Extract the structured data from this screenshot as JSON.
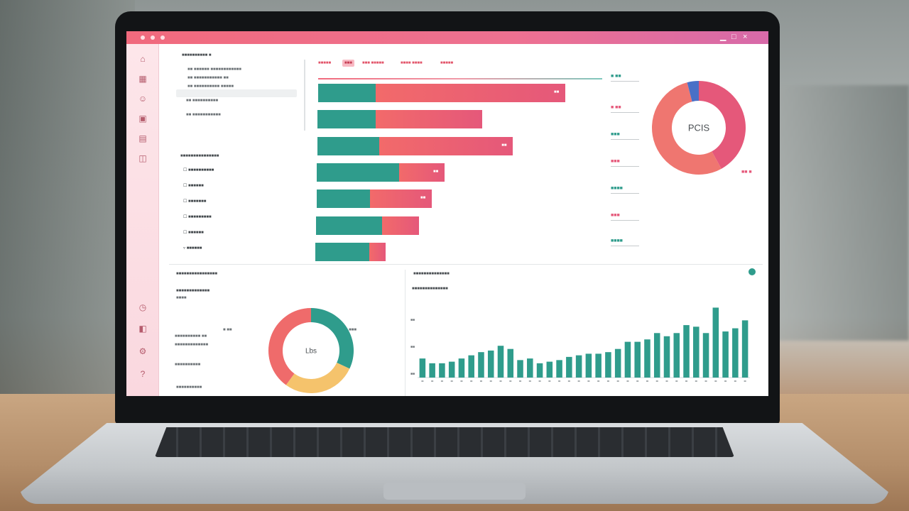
{
  "colors": {
    "teal": "#2f9c8c",
    "salmon": "#f26a6a",
    "coral": "#ef7670",
    "rose": "#e5587a",
    "pink": "#f6c8d0",
    "gold": "#f5c36c",
    "blue": "#4a70c7"
  },
  "titlebar": {
    "icons": [
      "home-dot",
      "user-dot",
      "settings-dot"
    ],
    "controls": [
      "minimize-icon",
      "maximize-icon",
      "close-icon"
    ]
  },
  "sidebar": {
    "icons": [
      "home-icon",
      "grid-icon",
      "user-icon",
      "lock-icon",
      "folder-icon",
      "layers-icon",
      "chart-icon",
      "message-icon",
      "settings-icon",
      "help-icon"
    ]
  },
  "tree": {
    "heading": "■■■■■■■■■■ ■",
    "items": [
      "■■ ■■■■■■ ■■■■■■■■■■■■",
      "■■ ■■■■■■■■■■■ ■■",
      "■■ ■■■■■■■■■■ ■■■■■",
      "■■ ■■■■■■■■■■",
      "■■ ■■■■■■■■■■■"
    ]
  },
  "filters": {
    "heading": "■■■■■■■■■■■■■■■",
    "items": [
      "■■■■■■■■■■",
      "■■■■■■",
      "■■■■■■■",
      "■■■■■■■■■",
      "■■■■■■",
      "■■■■■■"
    ]
  },
  "tabs": [
    "■■■■■",
    "■■■",
    "■■■ ■■■■■",
    "■■■■ ■■■■",
    "■■■■■"
  ],
  "chart_data": [
    {
      "type": "bar",
      "orientation": "horizontal",
      "series": [
        {
          "name": "",
          "values": [
            28,
            28,
            30,
            40,
            26,
            32,
            26
          ]
        },
        {
          "name": "",
          "values": [
            92,
            52,
            65,
            22,
            30,
            18,
            8
          ]
        }
      ],
      "value_labels": [
        "■■",
        "",
        "■■",
        "■■",
        "■■",
        "",
        ""
      ],
      "legend_right": [
        "■ ■■",
        "■ ■■",
        "■■■",
        "■■■",
        "■■■■",
        "■■■",
        "■■■■",
        "■■■■■"
      ]
    },
    {
      "type": "pie",
      "style": "donut",
      "center_label": "PCIS",
      "values": [
        42,
        54,
        4
      ],
      "colors": [
        "#e5587a",
        "#ef7670",
        "#4a70c7"
      ],
      "labels": [
        "",
        "■■ ■",
        ""
      ]
    },
    {
      "type": "pie",
      "style": "donut",
      "center_label": "Lbs",
      "values": [
        32,
        28,
        40
      ],
      "colors": [
        "#2f9c8c",
        "#f5c36c",
        "#ef6b6b"
      ],
      "labels": [
        "■ ■■",
        "■■■",
        ""
      ]
    },
    {
      "type": "bar",
      "title": "■■■■■■■■■■■■■■",
      "subtitle": "■■■■■■■",
      "ytick_labels": [
        "■■",
        "■■",
        "■■"
      ],
      "values": [
        24,
        18,
        18,
        20,
        24,
        28,
        32,
        34,
        40,
        36,
        22,
        24,
        18,
        20,
        22,
        26,
        28,
        30,
        30,
        32,
        36,
        45,
        45,
        48,
        56,
        52,
        56,
        66,
        64,
        56,
        88,
        58,
        62,
        72
      ],
      "ylim": [
        0,
        100
      ]
    }
  ],
  "bottom_left": {
    "heading": "■■■■■■■■■■■■■■■■",
    "title": "■■■■■■■■■■■■■",
    "subtitle": "■■■■",
    "rows": [
      "■■■■■■■■■■ ■■",
      "■■■■■■■■■■■■■",
      "■■■■■■■■■■"
    ],
    "footer": "■■■■■■■■■■"
  },
  "bottom_right": {
    "heading": "■■■■■■■■■■■■■■"
  }
}
